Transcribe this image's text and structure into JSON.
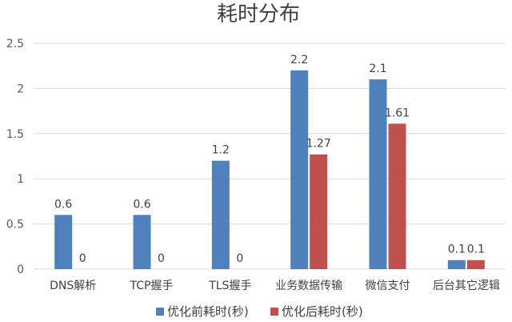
{
  "chart_data": {
    "type": "bar",
    "title": "耗时分布",
    "categories": [
      "DNS解析",
      "TCP握手",
      "TLS握手",
      "业务数据传输",
      "微信支付",
      "后台其它逻辑"
    ],
    "series": [
      {
        "name": "优化前耗时(秒)",
        "color": "#4f81bd",
        "values": [
          0.6,
          0.6,
          1.2,
          2.2,
          2.1,
          0.1
        ]
      },
      {
        "name": "优化后耗时(秒)",
        "color": "#c0504d",
        "values": [
          0,
          0,
          0,
          1.27,
          1.61,
          0.1
        ]
      }
    ],
    "ylim": [
      0,
      2.5
    ],
    "yticks": [
      "0",
      "0.5",
      "1",
      "1.5",
      "2",
      "2.5"
    ],
    "grid": true,
    "legend_position": "bottom",
    "data_labels": [
      [
        "0.6",
        "0.6",
        "1.2",
        "2.2",
        "2.1",
        "0.1"
      ],
      [
        "0",
        "0",
        "0",
        "1.27",
        "1.61",
        "0.1"
      ]
    ]
  }
}
